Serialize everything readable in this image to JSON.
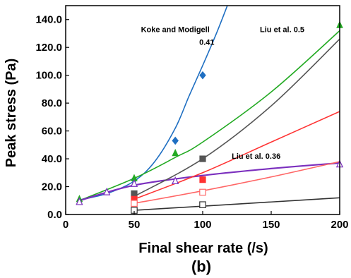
{
  "chart_data": {
    "type": "scatter",
    "xlabel": "Final shear rate (/s)",
    "ylabel": "Peak stress (Pa)",
    "panel_label": "(b)",
    "xlim": [
      0,
      200
    ],
    "ylim": [
      0,
      150
    ],
    "x_ticks": [
      "0",
      "50",
      "100",
      "150",
      "200"
    ],
    "y_ticks": [
      "0.0",
      "20.0",
      "40.0",
      "60.0",
      "80.0",
      "100.0",
      "120.0",
      "140.0"
    ],
    "grid": false,
    "annotations": [
      {
        "text": "Koke and Modigell",
        "x": 80,
        "y": 131
      },
      {
        "text": "0.41",
        "x": 103,
        "y": 122
      },
      {
        "text": "Liu et al. 0.5",
        "x": 158,
        "y": 131
      },
      {
        "text": "Liu et al. 0.36",
        "x": 139,
        "y": 40
      }
    ],
    "series": [
      {
        "color": "#1f6fc2",
        "marker": "diamond-filled",
        "points": [
          [
            50,
            25
          ],
          [
            80,
            53
          ],
          [
            100,
            100
          ]
        ],
        "curve": [
          [
            10,
            10.5
          ],
          [
            30,
            15
          ],
          [
            50,
            24
          ],
          [
            65,
            38
          ],
          [
            80,
            62
          ],
          [
            90,
            85
          ],
          [
            100,
            107
          ],
          [
            110,
            130
          ],
          [
            118,
            150
          ]
        ]
      },
      {
        "color": "#22aa22",
        "marker": "triangle-filled",
        "points": [
          [
            10,
            11
          ],
          [
            50,
            26
          ],
          [
            80,
            44
          ],
          [
            200,
            136
          ]
        ],
        "curve": [
          [
            10,
            10
          ],
          [
            50,
            26
          ],
          [
            80,
            41
          ],
          [
            100,
            52
          ],
          [
            150,
            88
          ],
          [
            200,
            132
          ]
        ]
      },
      {
        "color": "#7b2fbe",
        "marker": "triangle-open",
        "points": [
          [
            10,
            9
          ],
          [
            30,
            16
          ],
          [
            50,
            22
          ],
          [
            80,
            24
          ],
          [
            200,
            36
          ]
        ],
        "curve": [
          [
            10,
            10
          ],
          [
            50,
            21
          ],
          [
            100,
            28
          ],
          [
            150,
            33
          ],
          [
            200,
            37
          ]
        ]
      },
      {
        "color": "#555555",
        "marker": "square-filled",
        "points": [
          [
            50,
            15
          ],
          [
            100,
            40
          ]
        ],
        "curve": [
          [
            50,
            13
          ],
          [
            100,
            40
          ],
          [
            150,
            78
          ],
          [
            200,
            126
          ]
        ]
      },
      {
        "color": "#ff3333",
        "marker": "square-filled",
        "points": [
          [
            50,
            11
          ],
          [
            100,
            25
          ]
        ],
        "curve": [
          [
            50,
            11
          ],
          [
            100,
            30
          ],
          [
            150,
            52
          ],
          [
            200,
            74
          ]
        ]
      },
      {
        "color": "#ff6666",
        "marker": "square-open",
        "points": [
          [
            50,
            8
          ],
          [
            100,
            16
          ]
        ],
        "curve": [
          [
            50,
            8
          ],
          [
            100,
            17
          ],
          [
            150,
            27
          ],
          [
            200,
            38
          ]
        ]
      },
      {
        "color": "#333333",
        "marker": "square-open",
        "points": [
          [
            50,
            3
          ],
          [
            100,
            7
          ]
        ],
        "curve": [
          [
            50,
            3
          ],
          [
            100,
            6
          ],
          [
            150,
            9
          ],
          [
            200,
            12
          ]
        ]
      }
    ]
  }
}
